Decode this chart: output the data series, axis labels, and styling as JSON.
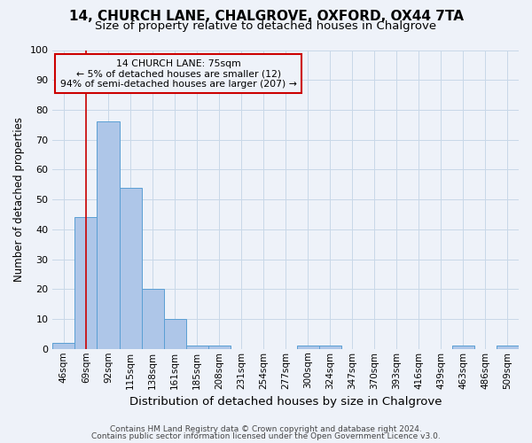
{
  "title1": "14, CHURCH LANE, CHALGROVE, OXFORD, OX44 7TA",
  "title2": "Size of property relative to detached houses in Chalgrove",
  "xlabel": "Distribution of detached houses by size in Chalgrove",
  "ylabel": "Number of detached properties",
  "categories": [
    "46sqm",
    "69sqm",
    "92sqm",
    "115sqm",
    "138sqm",
    "161sqm",
    "185sqm",
    "208sqm",
    "231sqm",
    "254sqm",
    "277sqm",
    "300sqm",
    "324sqm",
    "347sqm",
    "370sqm",
    "393sqm",
    "416sqm",
    "439sqm",
    "463sqm",
    "486sqm",
    "509sqm"
  ],
  "values": [
    2,
    44,
    76,
    54,
    20,
    10,
    1,
    1,
    0,
    0,
    0,
    1,
    1,
    0,
    0,
    0,
    0,
    0,
    1,
    0,
    1
  ],
  "bar_color": "#aec6e8",
  "bar_edge_color": "#5a9fd4",
  "marker_bin_index": 1,
  "annotation_title": "14 CHURCH LANE: 75sqm",
  "annotation_line1": "← 5% of detached houses are smaller (12)",
  "annotation_line2": "94% of semi-detached houses are larger (207) →",
  "marker_color": "#cc0000",
  "ylim": [
    0,
    100
  ],
  "yticks": [
    0,
    10,
    20,
    30,
    40,
    50,
    60,
    70,
    80,
    90,
    100
  ],
  "footnote1": "Contains HM Land Registry data © Crown copyright and database right 2024.",
  "footnote2": "Contains public sector information licensed under the Open Government Licence v3.0.",
  "bg_color": "#eef2f9",
  "grid_color": "#c8d8e8",
  "title1_fontsize": 11,
  "title2_fontsize": 9.5,
  "xlabel_fontsize": 9.5,
  "ylabel_fontsize": 8.5,
  "tick_fontsize": 7.5,
  "annotation_fontsize": 7.8,
  "footnote_fontsize": 6.5
}
